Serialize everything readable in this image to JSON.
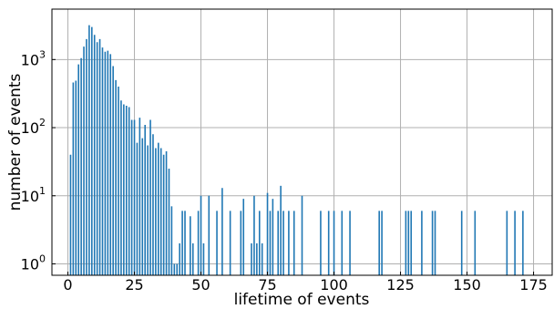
{
  "chart_data": {
    "type": "bar",
    "xlabel": "lifetime of events",
    "ylabel": "number of events",
    "y_scale": "log",
    "grid": true,
    "xlim": [
      -6,
      182
    ],
    "ylim": [
      0.68,
      5500
    ],
    "x_ticks": [
      0,
      25,
      50,
      75,
      100,
      125,
      150,
      175
    ],
    "y_ticks": [
      {
        "value": 1,
        "label": "10",
        "exp": "0"
      },
      {
        "value": 10,
        "label": "10",
        "exp": "1"
      },
      {
        "value": 100,
        "label": "10",
        "exp": "2"
      },
      {
        "value": 1000,
        "label": "10",
        "exp": "3"
      }
    ],
    "bar_color": "#1f77b4",
    "x": [
      1,
      2,
      3,
      4,
      5,
      6,
      7,
      8,
      9,
      10,
      11,
      12,
      13,
      14,
      15,
      16,
      17,
      18,
      19,
      20,
      21,
      22,
      23,
      24,
      25,
      26,
      27,
      28,
      29,
      30,
      31,
      32,
      33,
      34,
      35,
      36,
      37,
      38,
      39,
      40,
      41,
      42,
      43,
      44,
      46,
      47,
      49,
      50,
      51,
      53,
      56,
      58,
      61,
      65,
      66,
      69,
      70,
      71,
      72,
      73,
      75,
      76,
      77,
      79,
      80,
      81,
      83,
      85,
      88,
      95,
      98,
      100,
      103,
      106,
      117,
      118,
      127,
      128,
      129,
      133,
      137,
      138,
      148,
      153,
      165,
      168,
      171
    ],
    "values": [
      40,
      460,
      490,
      850,
      1050,
      1550,
      2000,
      3200,
      3000,
      2300,
      1800,
      2000,
      1500,
      1300,
      1350,
      1200,
      800,
      500,
      400,
      250,
      220,
      210,
      200,
      130,
      130,
      60,
      140,
      70,
      110,
      55,
      130,
      80,
      50,
      60,
      50,
      40,
      45,
      25,
      7,
      1,
      1,
      2,
      6,
      6,
      5,
      2,
      6,
      10,
      2,
      10,
      6,
      13,
      6,
      6,
      9,
      2,
      10,
      2,
      6,
      2,
      11,
      6,
      9,
      6,
      14,
      6,
      6,
      6,
      10,
      6,
      6,
      6,
      6,
      6,
      6,
      6,
      6,
      6,
      6,
      6,
      6,
      6,
      6,
      6,
      6,
      6,
      6
    ]
  }
}
